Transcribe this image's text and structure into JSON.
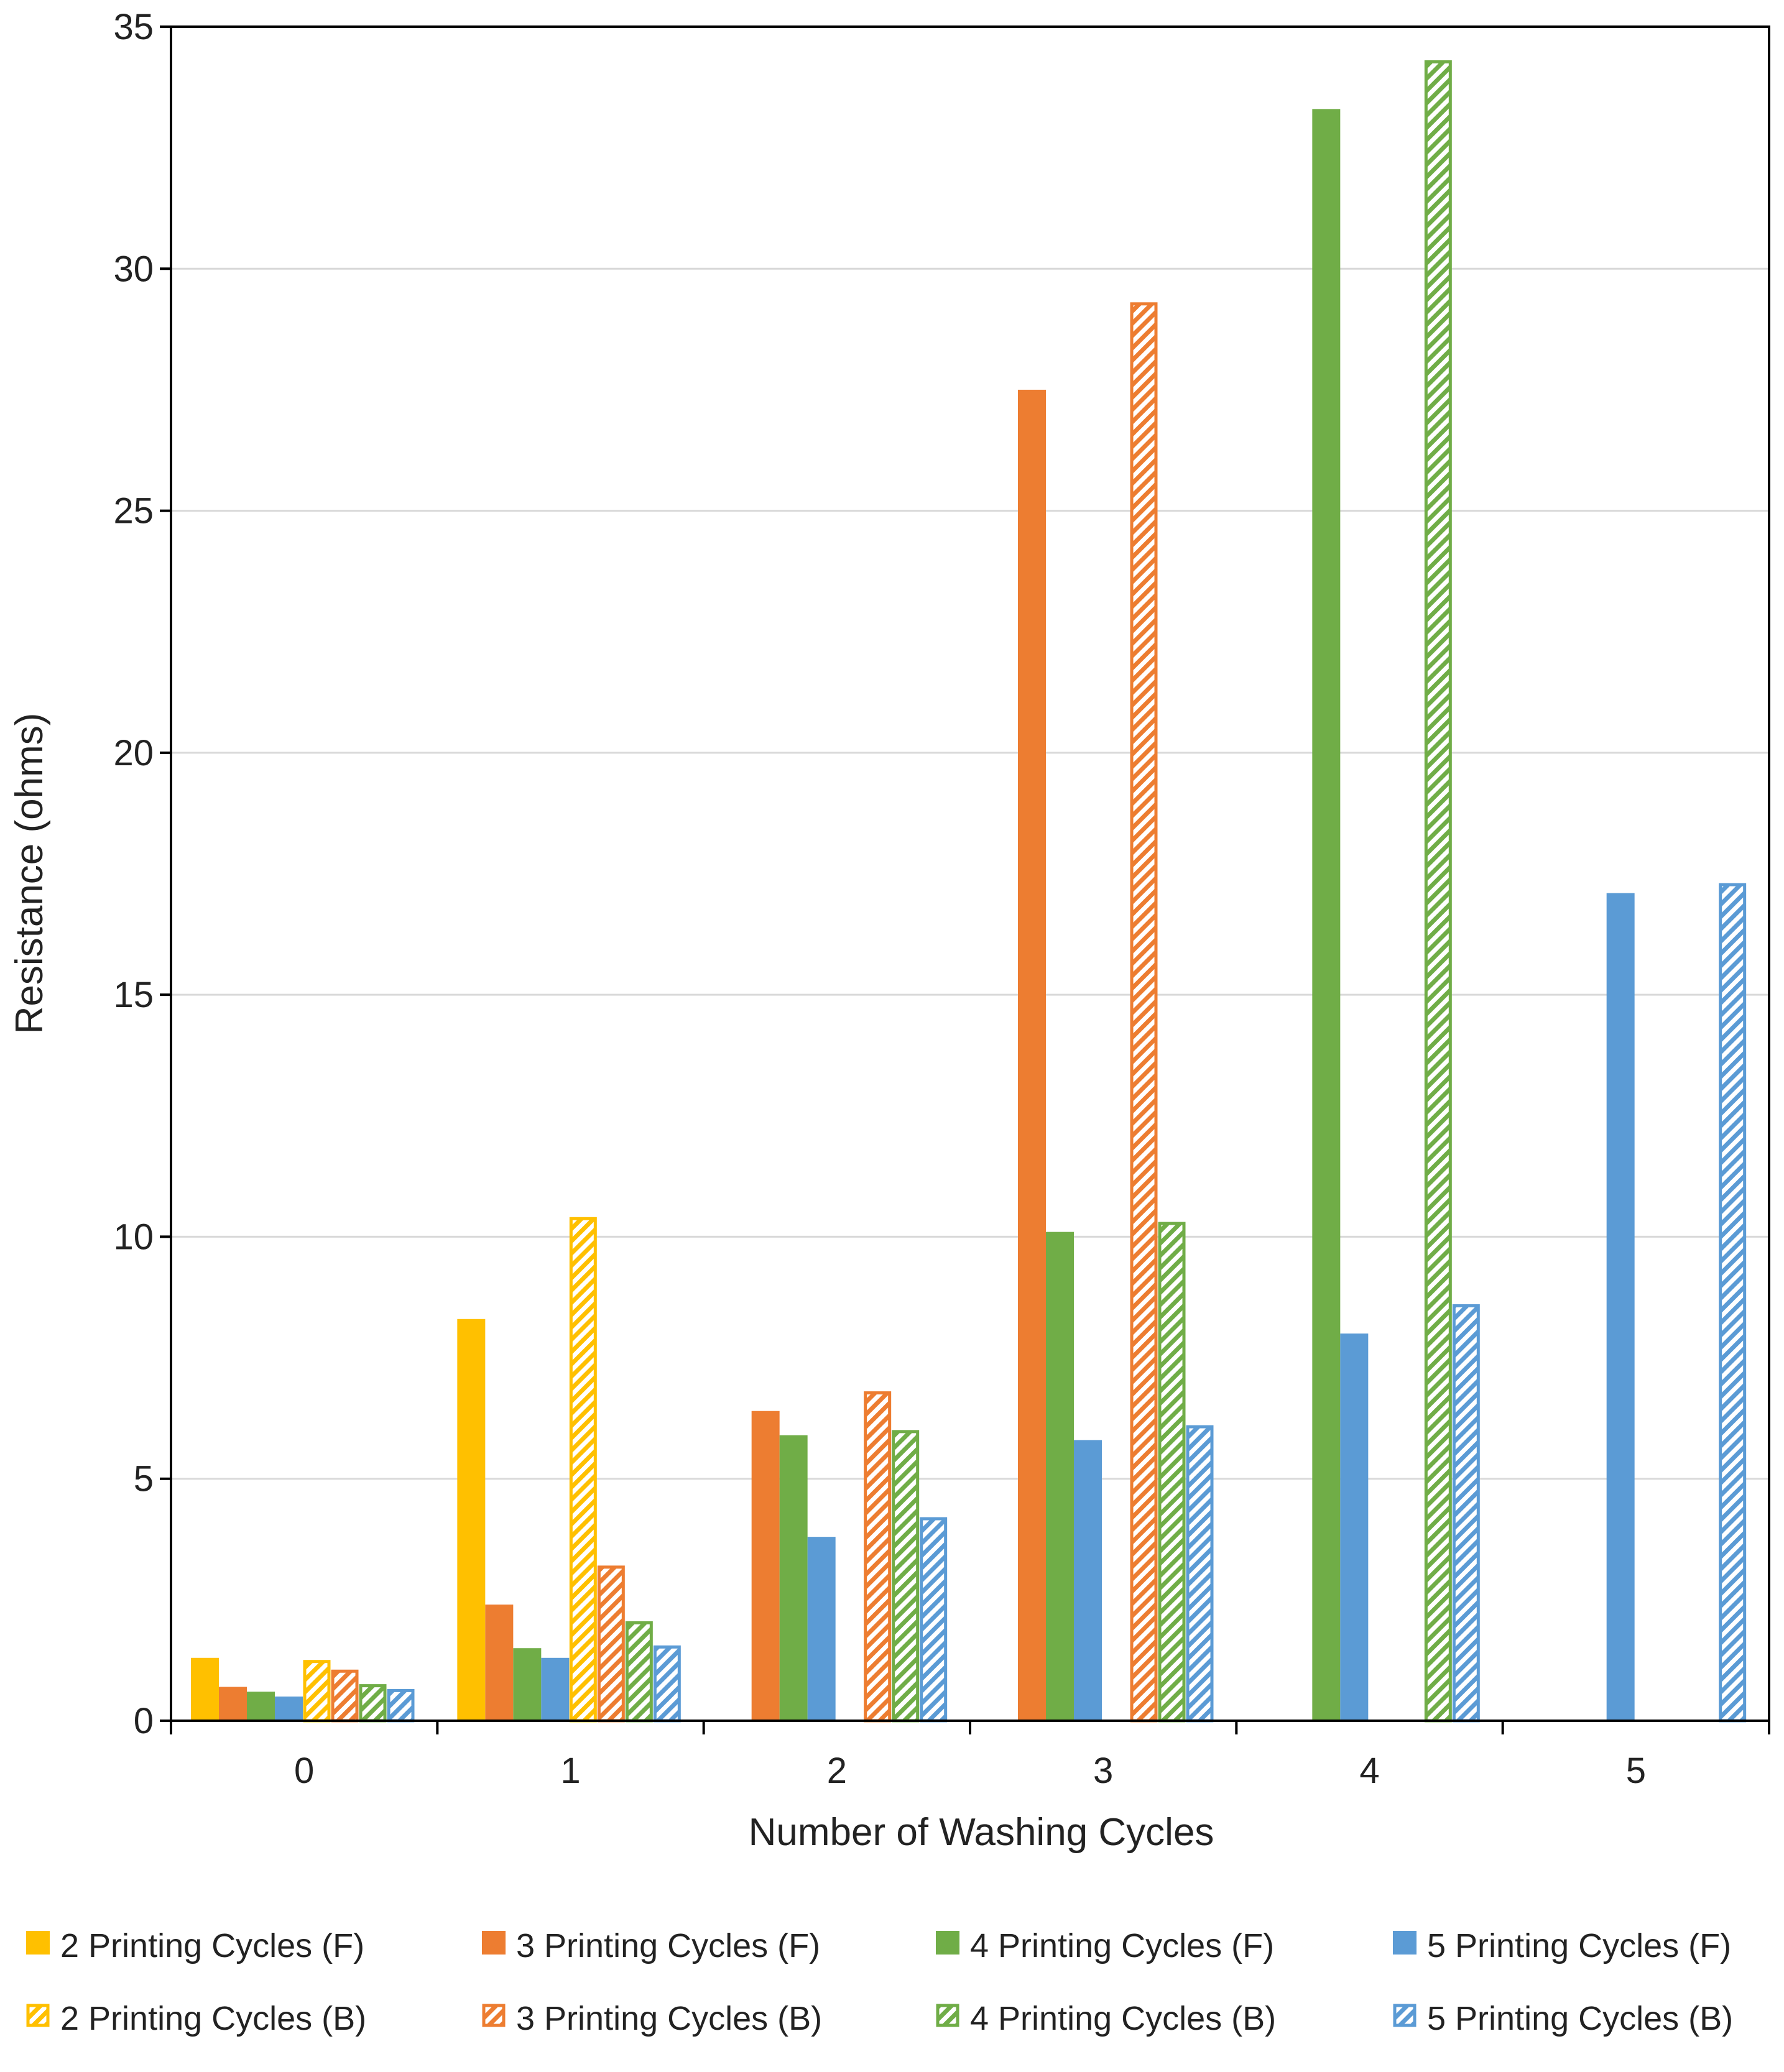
{
  "chart_data": {
    "type": "bar",
    "title": "",
    "xlabel": "Number of Washing Cycles",
    "ylabel": "Resistance (ohms)",
    "categories": [
      "0",
      "1",
      "2",
      "3",
      "4",
      "5"
    ],
    "ylim": [
      0,
      35
    ],
    "yticks": [
      "0",
      "5",
      "10",
      "15",
      "20",
      "25",
      "30",
      "35"
    ],
    "grid": "horizontal",
    "legend_position": "bottom",
    "series": [
      {
        "name": "2 Printing Cycles (F)",
        "color": "#FFC000",
        "pattern": "solid",
        "values": [
          1.3,
          8.3,
          null,
          null,
          null,
          null
        ]
      },
      {
        "name": "3 Printing Cycles (F)",
        "color": "#ED7D31",
        "pattern": "solid",
        "values": [
          0.7,
          2.4,
          6.4,
          27.5,
          null,
          null
        ]
      },
      {
        "name": "4 Printing Cycles (F)",
        "color": "#70AD47",
        "pattern": "solid",
        "values": [
          0.6,
          1.5,
          5.9,
          10.1,
          33.3,
          null
        ]
      },
      {
        "name": "5 Printing Cycles (F)",
        "color": "#5B9BD5",
        "pattern": "solid",
        "values": [
          0.5,
          1.3,
          3.8,
          5.8,
          8.0,
          17.1
        ]
      },
      {
        "name": "2 Printing Cycles (B)",
        "color": "#FFC000",
        "pattern": "hatched",
        "values": [
          1.25,
          10.4,
          null,
          null,
          null,
          null
        ]
      },
      {
        "name": "3 Printing Cycles (B)",
        "color": "#ED7D31",
        "pattern": "hatched",
        "values": [
          1.05,
          3.2,
          6.8,
          29.3,
          null,
          null
        ]
      },
      {
        "name": "4 Printing Cycles (B)",
        "color": "#70AD47",
        "pattern": "hatched",
        "values": [
          0.75,
          2.05,
          6.0,
          10.3,
          34.3,
          null
        ]
      },
      {
        "name": "5 Printing Cycles (B)",
        "color": "#5B9BD5",
        "pattern": "hatched",
        "values": [
          0.65,
          1.55,
          4.2,
          6.1,
          8.6,
          17.3
        ]
      }
    ]
  }
}
